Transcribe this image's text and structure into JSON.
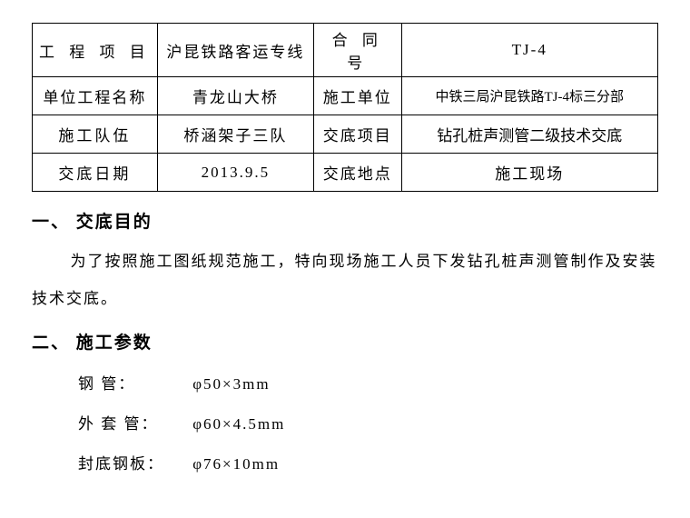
{
  "table": {
    "rows": [
      {
        "c1": "工 程 项 目",
        "c2": "沪昆铁路客运专线",
        "c3": "合 同 号",
        "c4": "TJ-4"
      },
      {
        "c1": "单位工程名称",
        "c2": "青龙山大桥",
        "c3": "施工单位",
        "c4": "中铁三局沪昆铁路TJ-4标三分部"
      },
      {
        "c1": "施工队伍",
        "c2": "桥涵架子三队",
        "c3": "交底项目",
        "c4": "钻孔桩声测管二级技术交底"
      },
      {
        "c1": "交底日期",
        "c2": "2013.9.5",
        "c3": "交底地点",
        "c4": "施工现场"
      }
    ]
  },
  "section1": {
    "heading": "一、 交底目的",
    "body": "为了按照施工图纸规范施工，特向现场施工人员下发钻孔桩声测管制作及安装技术交底。"
  },
  "section2": {
    "heading": "二、 施工参数",
    "params": [
      {
        "label": "钢 管：",
        "value": "φ50×3mm"
      },
      {
        "label": "外 套 管：",
        "value": "φ60×4.5mm"
      },
      {
        "label": "封底钢板：",
        "value": "φ76×10mm"
      }
    ]
  }
}
